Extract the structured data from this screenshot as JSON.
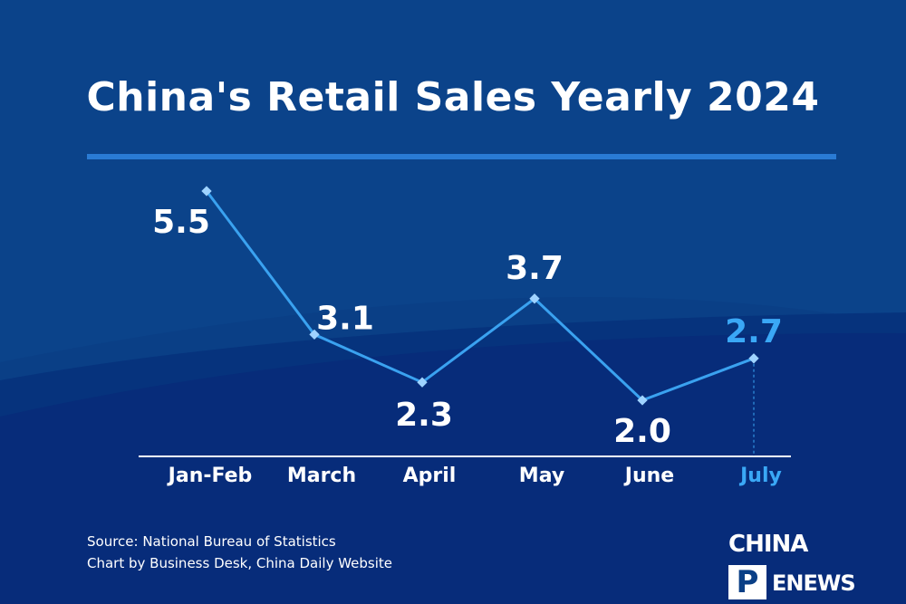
{
  "title": "China's Retail Sales Yearly 2024",
  "footer": {
    "source": "Source: National Bureau of Statistics",
    "credit": "Chart by Business Desk, China Daily Website"
  },
  "logo": {
    "top_text": "CHINA",
    "bottom_letter": "P",
    "bottom_text": "ENEWS"
  },
  "colors": {
    "background": "#0a3f86",
    "line": "#3aa2f0",
    "highlight": "#3aa8f6",
    "text": "#ffffff"
  },
  "chart_data": {
    "type": "line",
    "categories": [
      "Jan-Feb",
      "March",
      "April",
      "May",
      "June",
      "July"
    ],
    "values": [
      5.5,
      3.1,
      2.3,
      3.7,
      2.0,
      2.7
    ],
    "value_labels": [
      "5.5",
      "3.1",
      "2.3",
      "3.7",
      "2.0",
      "2.7"
    ],
    "highlight_category": "July",
    "ylim": [
      0,
      6
    ],
    "grid": false,
    "legend": "none"
  }
}
